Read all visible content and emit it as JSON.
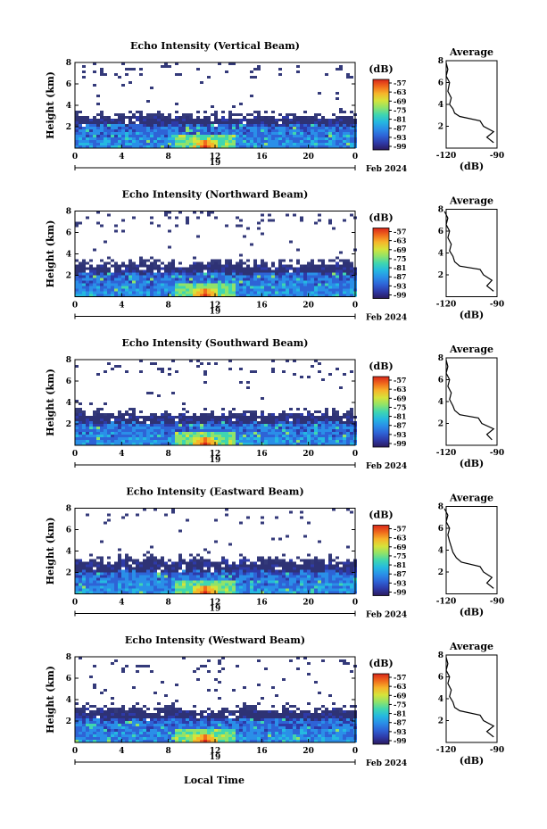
{
  "figure": {
    "date_label": "Feb 2024",
    "day_label": "19",
    "x_axis_title": "Local Time",
    "colorbar_unit": "(dB)",
    "colorbar_ticks": [
      "-57",
      "-63",
      "-69",
      "-75",
      "-81",
      "-87",
      "-93",
      "-99"
    ],
    "avg_title": "Average",
    "avg_xticks": [
      "-120",
      "-90"
    ],
    "avg_xunit": "(dB)"
  },
  "chart_data": [
    {
      "type": "heatmap",
      "title": "Echo Intensity (Vertical Beam)",
      "ylabel": "Height (km)",
      "xlabel": "Local Time",
      "xticks": [
        "0",
        "4",
        "8",
        "12",
        "16",
        "20",
        "0"
      ],
      "yticks": [
        "2",
        "4",
        "6",
        "8"
      ],
      "xlim": [
        0,
        24
      ],
      "ylim": [
        0,
        8
      ],
      "colorbar": {
        "unit": "dB",
        "min": -99,
        "max": -57,
        "ticks": [
          -57,
          -63,
          -69,
          -75,
          -81,
          -87,
          -93,
          -99
        ]
      },
      "layer_top_km": 3.0,
      "strong_echo_top_km": 2.3,
      "peak_hour": 11.0,
      "average_profile": {
        "title": "Average",
        "xlabel": "(dB)",
        "xlim": [
          -120,
          -90
        ],
        "ylim": [
          0,
          8
        ],
        "height_km": [
          0.5,
          1.0,
          1.5,
          2.0,
          2.5,
          2.9,
          3.2,
          3.6,
          4.0,
          4.6,
          5.2,
          6.0,
          6.6,
          7.2,
          7.8
        ],
        "db": [
          -92,
          -96,
          -92,
          -98,
          -100,
          -112,
          -115,
          -116,
          -118,
          -117,
          -119,
          -118,
          -120,
          -119,
          -120
        ]
      }
    },
    {
      "type": "heatmap",
      "title": "Echo Intensity (Northward Beam)",
      "ylabel": "Height (km)",
      "xlabel": "Local Time",
      "xticks": [
        "0",
        "4",
        "8",
        "12",
        "16",
        "20",
        "0"
      ],
      "yticks": [
        "2",
        "4",
        "6",
        "8"
      ],
      "xlim": [
        0,
        24
      ],
      "ylim": [
        0,
        8
      ],
      "colorbar": {
        "unit": "dB",
        "min": -99,
        "max": -57,
        "ticks": [
          -57,
          -63,
          -69,
          -75,
          -81,
          -87,
          -93,
          -99
        ]
      },
      "layer_top_km": 3.1,
      "strong_echo_top_km": 2.3,
      "peak_hour": 11.0,
      "average_profile": {
        "title": "Average",
        "xlabel": "(dB)",
        "xlim": [
          -120,
          -90
        ],
        "ylim": [
          0,
          8
        ],
        "height_km": [
          0.5,
          1.0,
          1.5,
          2.0,
          2.5,
          2.8,
          3.2,
          3.7,
          4.2,
          4.8,
          5.4,
          6.0,
          6.6,
          7.2,
          7.8
        ],
        "db": [
          -92,
          -96,
          -93,
          -98,
          -100,
          -112,
          -115,
          -116,
          -118,
          -117,
          -119,
          -118,
          -120,
          -119,
          -121
        ]
      }
    },
    {
      "type": "heatmap",
      "title": "Echo Intensity (Southward Beam)",
      "ylabel": "Height (km)",
      "xlabel": "Local Time",
      "xticks": [
        "0",
        "4",
        "8",
        "12",
        "16",
        "20",
        "0"
      ],
      "yticks": [
        "2",
        "4",
        "6",
        "8"
      ],
      "xlim": [
        0,
        24
      ],
      "ylim": [
        0,
        8
      ],
      "colorbar": {
        "unit": "dB",
        "min": -99,
        "max": -57,
        "ticks": [
          -57,
          -63,
          -69,
          -75,
          -81,
          -87,
          -93,
          -99
        ]
      },
      "layer_top_km": 3.0,
      "strong_echo_top_km": 2.2,
      "peak_hour": 11.0,
      "average_profile": {
        "title": "Average",
        "xlabel": "(dB)",
        "xlim": [
          -120,
          -90
        ],
        "ylim": [
          0,
          8
        ],
        "height_km": [
          0.5,
          1.0,
          1.5,
          2.0,
          2.5,
          2.8,
          3.2,
          3.6,
          4.2,
          4.8,
          5.4,
          6.0,
          6.6,
          7.2,
          7.8
        ],
        "db": [
          -93,
          -96,
          -92,
          -99,
          -101,
          -112,
          -115,
          -116,
          -118,
          -117,
          -119,
          -118,
          -120,
          -119,
          -120
        ]
      }
    },
    {
      "type": "heatmap",
      "title": "Echo Intensity (Eastward Beam)",
      "ylabel": "Height (km)",
      "xlabel": "Local Time",
      "xticks": [
        "0",
        "4",
        "8",
        "12",
        "16",
        "20",
        "0"
      ],
      "yticks": [
        "2",
        "4",
        "6",
        "8"
      ],
      "xlim": [
        0,
        24
      ],
      "ylim": [
        0,
        8
      ],
      "colorbar": {
        "unit": "dB",
        "min": -99,
        "max": -57,
        "ticks": [
          -57,
          -63,
          -69,
          -75,
          -81,
          -87,
          -93,
          -99
        ]
      },
      "layer_top_km": 3.2,
      "strong_echo_top_km": 2.2,
      "peak_hour": 11.0,
      "average_profile": {
        "title": "Average",
        "xlabel": "(dB)",
        "xlim": [
          -120,
          -90
        ],
        "ylim": [
          0,
          8
        ],
        "height_km": [
          0.5,
          1.0,
          1.5,
          2.0,
          2.5,
          2.9,
          3.3,
          3.8,
          4.3,
          4.8,
          5.4,
          6.0,
          6.6,
          7.2,
          7.8
        ],
        "db": [
          -92,
          -96,
          -93,
          -98,
          -100,
          -111,
          -114,
          -116,
          -117,
          -118,
          -119,
          -118,
          -120,
          -119,
          -121
        ]
      }
    },
    {
      "type": "heatmap",
      "title": "Echo Intensity (Westward Beam)",
      "ylabel": "Height (km)",
      "xlabel": "Local Time",
      "xticks": [
        "0",
        "4",
        "8",
        "12",
        "16",
        "20",
        "0"
      ],
      "yticks": [
        "2",
        "4",
        "6",
        "8"
      ],
      "xlim": [
        0,
        24
      ],
      "ylim": [
        0,
        8
      ],
      "colorbar": {
        "unit": "dB",
        "min": -99,
        "max": -57,
        "ticks": [
          -57,
          -63,
          -69,
          -75,
          -81,
          -87,
          -93,
          -99
        ]
      },
      "layer_top_km": 3.1,
      "strong_echo_top_km": 2.3,
      "peak_hour": 11.0,
      "average_profile": {
        "title": "Average",
        "xlabel": "(dB)",
        "xlim": [
          -120,
          -90
        ],
        "ylim": [
          0,
          8
        ],
        "height_km": [
          0.5,
          1.0,
          1.5,
          2.0,
          2.5,
          2.9,
          3.2,
          3.7,
          4.2,
          4.8,
          5.4,
          6.0,
          6.6,
          7.2,
          7.8
        ],
        "db": [
          -92,
          -96,
          -92,
          -98,
          -100,
          -112,
          -115,
          -116,
          -118,
          -117,
          -119,
          -118,
          -120,
          -119,
          -120
        ]
      }
    }
  ],
  "colors": {
    "colormap": [
      "#2b1a5e",
      "#2e3aa8",
      "#2e63d6",
      "#2a8fe8",
      "#25b9e0",
      "#3fd6b0",
      "#8fe36a",
      "#d6e33a",
      "#f6b52a",
      "#f06a1c",
      "#d9261a"
    ],
    "layer_fill": "#2e3275",
    "sparse_fill": "#343a7a"
  }
}
